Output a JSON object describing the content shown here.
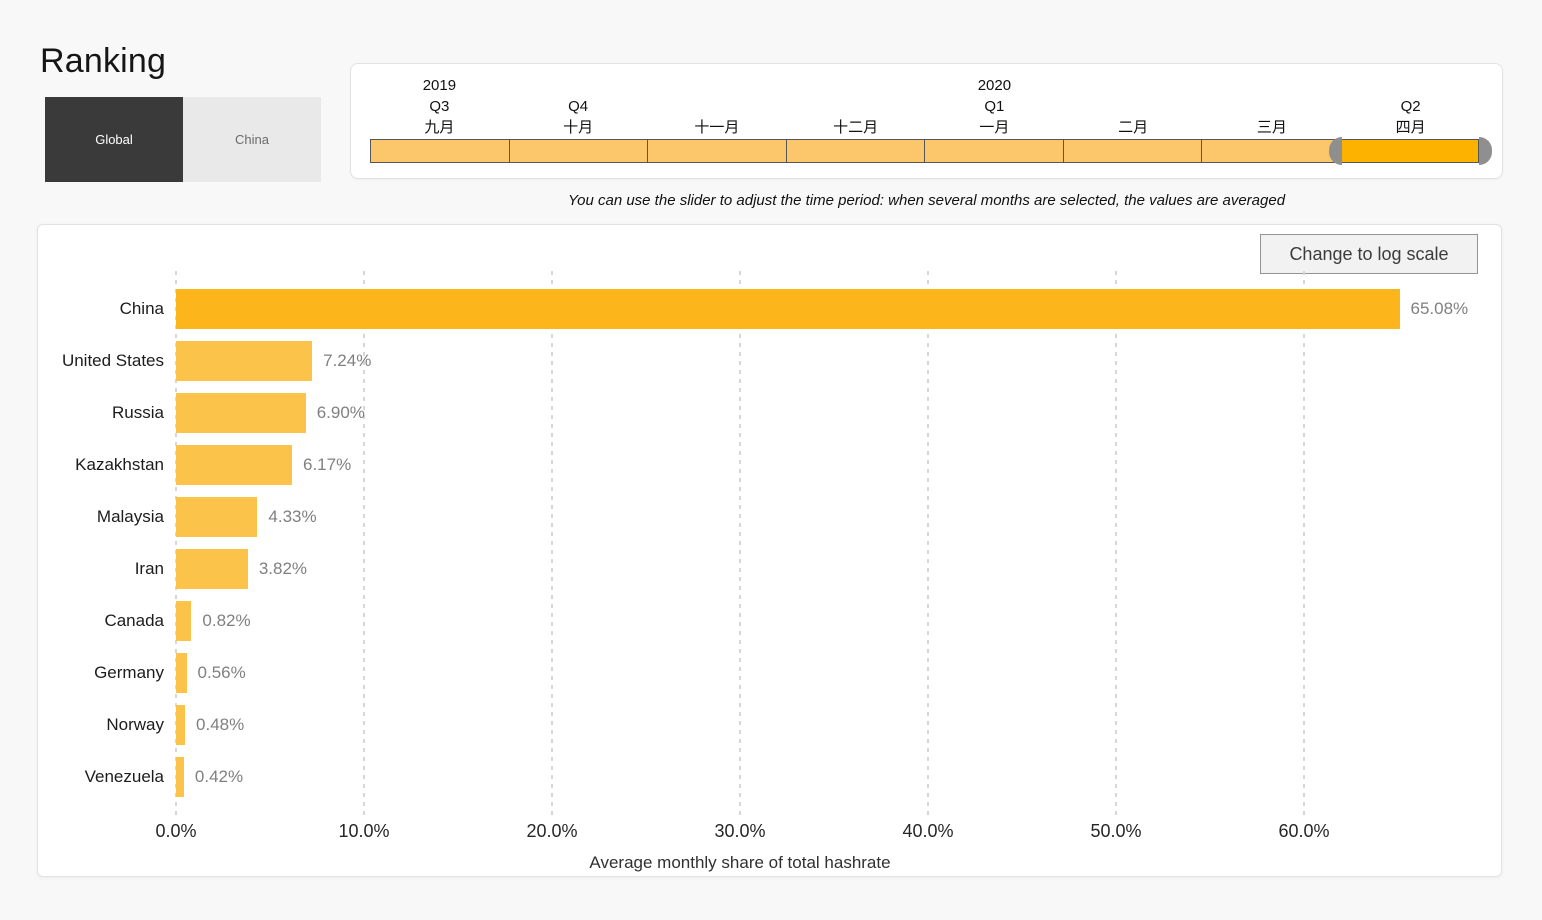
{
  "page": {
    "title": "Ranking",
    "caption": "You can use the slider to adjust the time period: when several months are selected, the values are averaged"
  },
  "toggle": {
    "global_label": "Global",
    "china_label": "China",
    "selected": "Global"
  },
  "slider": {
    "segments": [
      {
        "year": "2019",
        "quarter": "Q3",
        "month": "九月",
        "selected": false
      },
      {
        "year": "",
        "quarter": "Q4",
        "month": "十月",
        "selected": false
      },
      {
        "year": "",
        "quarter": "",
        "month": "十一月",
        "selected": false
      },
      {
        "year": "",
        "quarter": "",
        "month": "十二月",
        "selected": false
      },
      {
        "year": "2020",
        "quarter": "Q1",
        "month": "一月",
        "selected": false
      },
      {
        "year": "",
        "quarter": "",
        "month": "二月",
        "selected": false
      },
      {
        "year": "",
        "quarter": "",
        "month": "三月",
        "selected": false
      },
      {
        "year": "",
        "quarter": "Q2",
        "month": "四月",
        "selected": true
      }
    ],
    "colors": {
      "unselected": "#fcc76b",
      "selected": "#fdb200",
      "handle": "#8f8f8f"
    }
  },
  "chart": {
    "log_button_label": "Change to log scale"
  },
  "chart_data": {
    "type": "bar",
    "orientation": "horizontal",
    "title": "",
    "categories": [
      "China",
      "United States",
      "Russia",
      "Kazakhstan",
      "Malaysia",
      "Iran",
      "Canada",
      "Germany",
      "Norway",
      "Venezuela"
    ],
    "values": [
      65.08,
      7.24,
      6.9,
      6.17,
      4.33,
      3.82,
      0.82,
      0.56,
      0.48,
      0.42
    ],
    "value_labels": [
      "65.08%",
      "7.24%",
      "6.90%",
      "6.17%",
      "4.33%",
      "3.82%",
      "0.82%",
      "0.56%",
      "0.48%",
      "0.42%"
    ],
    "xlabel": "Average monthly share of total hashrate",
    "x_ticks": [
      "0.0%",
      "10.0%",
      "20.0%",
      "30.0%",
      "40.0%",
      "50.0%",
      "60.0%"
    ],
    "x_tick_values": [
      0,
      10,
      20,
      30,
      40,
      50,
      60
    ],
    "xlim": [
      0,
      66
    ],
    "grid": true,
    "legend": false,
    "bar_colors": {
      "highlight": "#fcb61c",
      "default": "#fcc34a"
    },
    "highlight_index": 0
  }
}
